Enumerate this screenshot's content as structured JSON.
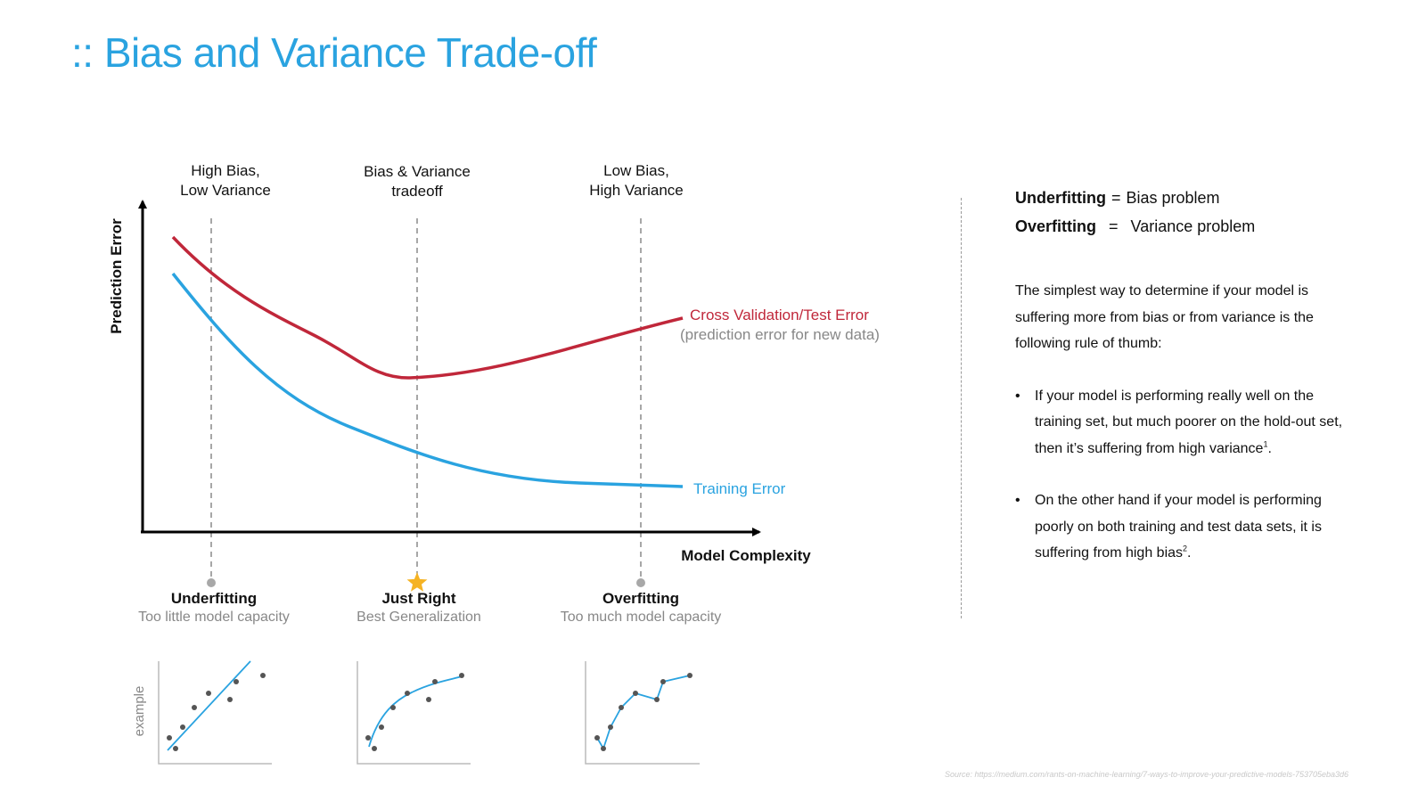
{
  "title": ":: Bias and Variance Trade-off",
  "diagram": {
    "y_axis_label": "Prediction Error",
    "x_axis_label": "Model Complexity",
    "zones": [
      {
        "top_line1": "High Bias,",
        "top_line2": "Low Variance",
        "name": "Underfitting",
        "subtitle": "Too little model capacity",
        "marker": "dot"
      },
      {
        "top_line1": "Bias & Variance",
        "top_line2": "tradeoff",
        "name": "Just Right",
        "subtitle": "Best Generalization",
        "marker": "star"
      },
      {
        "top_line1": "Low Bias,",
        "top_line2": "High Variance",
        "name": "Overfitting",
        "subtitle": "Too much model capacity",
        "marker": "dot"
      }
    ],
    "curves": {
      "test": {
        "label": "Cross Validation/Test Error",
        "sublabel": "(prediction error for new data)",
        "color": "#c0273a"
      },
      "train": {
        "label": "Training Error",
        "color": "#2aa3e0"
      }
    },
    "example_label": "example"
  },
  "sidebar": {
    "eq1_term": "Underfitting",
    "eq1_sign": "=",
    "eq1_value": "Bias problem",
    "eq2_term": "Overfitting",
    "eq2_sign": "=",
    "eq2_value": "Variance problem",
    "intro": "The simplest way to determine if your model is suffering more from bias or from variance is the following rule of thumb:",
    "bullet1": "If your model is performing really well on the training set, but much poorer on the hold-out set, then it’s suffering from high variance",
    "bullet1_sup": "1",
    "bullet2": "On the other hand if your model is performing poorly on both training and test data sets, it is suffering from high bias",
    "bullet2_sup": "2",
    "bullet_char": "•",
    "period": "."
  },
  "source": "Source: https://medium.com/rants-on-machine-learning/7-ways-to-improve-your-predictive-models-753705eba3d6",
  "colors": {
    "accent": "#2aa3e0",
    "test_error": "#c0273a",
    "star": "#f5b324",
    "muted": "#888888"
  }
}
